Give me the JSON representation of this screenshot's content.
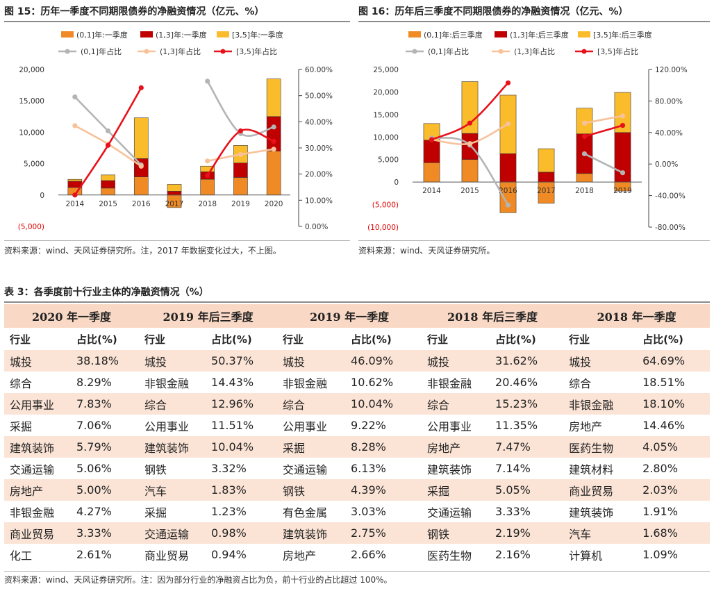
{
  "figure15": {
    "title": "图 15：历年一季度不同期限债券的净融资情况（亿元、%）",
    "source": "资料来源：wind、天风证券研究所。注，2017 年数据变化过大，不上图。"
  },
  "figure16": {
    "title": "图 16：历年后三季度不同期限债券的净融资情况（亿元、%）",
    "source": "资料来源：wind、天风证券研究所。"
  },
  "colors": {
    "bar_short": "#f08a24",
    "bar_mid": "#c00000",
    "bar_long": "#fbbc2c",
    "line_short": "#b4b4b4",
    "line_mid": "#f7c29a",
    "line_long": "#e8101a",
    "negative_tick": "#e00000"
  },
  "chart_data": [
    {
      "type": "bar",
      "stacked": true,
      "categories": [
        "2014",
        "2015",
        "2016",
        "2017",
        "2018",
        "2019",
        "2020"
      ],
      "series": [
        {
          "name": "(0,1]年:一季度",
          "values": [
            1200,
            1100,
            2900,
            -2000,
            2500,
            2800,
            7000
          ]
        },
        {
          "name": "(1,3]年:一季度",
          "values": [
            1000,
            1200,
            2900,
            600,
            1200,
            2300,
            5500
          ]
        },
        {
          "name": "[3,5]年:一季度",
          "values": [
            300,
            900,
            6500,
            1100,
            900,
            2800,
            6000
          ]
        }
      ],
      "line_series": [
        {
          "name": "(0,1]年占比",
          "values": [
            49.5,
            36.5,
            23.5,
            null,
            55.5,
            35.5,
            38.0
          ]
        },
        {
          "name": "(1,3]年占比",
          "values": [
            38.5,
            31.5,
            23.0,
            null,
            25.0,
            27.5,
            29.5
          ]
        },
        {
          "name": "[3,5]年占比",
          "values": [
            12.0,
            31.0,
            53.0,
            null,
            19.5,
            36.5,
            32.5
          ]
        }
      ],
      "ylim": [
        -5000,
        20000
      ],
      "yticks": [
        "(5,000)",
        "0",
        "5,000",
        "10,000",
        "15,000",
        "20,000"
      ],
      "y2lim": [
        0,
        60
      ],
      "y2ticks": [
        "0.00%",
        "10.00%",
        "20.00%",
        "30.00%",
        "40.00%",
        "50.00%",
        "60.00%"
      ],
      "legend": "top"
    },
    {
      "type": "bar",
      "stacked": true,
      "categories": [
        "2014",
        "2015",
        "2016",
        "2017",
        "2018",
        "2019"
      ],
      "series": [
        {
          "name": "(0,1]年:后三季度",
          "values": [
            4300,
            5000,
            -6800,
            -4700,
            1900,
            -2000
          ]
        },
        {
          "name": "(1,3]年:后三季度",
          "values": [
            5000,
            5800,
            6300,
            2200,
            8800,
            11000
          ]
        },
        {
          "name": "[3,5]年:后三季度",
          "values": [
            3700,
            11500,
            13000,
            5200,
            5700,
            8900
          ]
        }
      ],
      "line_series": [
        {
          "name": "(0,1]年占比",
          "values": [
            33.0,
            24.0,
            -52.0,
            null,
            13.0,
            -11.0
          ]
        },
        {
          "name": "(1,3]年占比",
          "values": [
            31.0,
            26.0,
            51.0,
            null,
            52.0,
            61.0
          ]
        },
        {
          "name": "[3,5]年占比",
          "values": [
            31.0,
            52.0,
            103.0,
            null,
            35.0,
            49.0
          ]
        }
      ],
      "ylim": [
        -10000,
        25000
      ],
      "yticks": [
        "(10,000)",
        "(5,000)",
        "0",
        "5,000",
        "10,000",
        "15,000",
        "20,000",
        "25,000"
      ],
      "y2lim": [
        -80,
        120
      ],
      "y2ticks": [
        "-80.00%",
        "-40.00%",
        "0.00%",
        "40.00%",
        "80.00%",
        "120.00%"
      ],
      "legend": "top"
    }
  ],
  "table3": {
    "title": "表 3：各季度前十行业主体的净融资情况（%）",
    "source": "资料来源：wind、天风证券研究所。注：因为部分行业的净融资占比为负，前十行业的占比超过 100%。",
    "col_industry": "行业",
    "col_ratio": "占比(%)",
    "groups": [
      {
        "title": "2020 年一季度",
        "rows": [
          [
            "城投",
            "38.18%"
          ],
          [
            "综合",
            "8.29%"
          ],
          [
            "公用事业",
            "7.83%"
          ],
          [
            "采掘",
            "7.06%"
          ],
          [
            "建筑装饰",
            "5.79%"
          ],
          [
            "交通运输",
            "5.06%"
          ],
          [
            "房地产",
            "5.00%"
          ],
          [
            "非银金融",
            "4.27%"
          ],
          [
            "商业贸易",
            "3.33%"
          ],
          [
            "化工",
            "2.61%"
          ]
        ]
      },
      {
        "title": "2019 年后三季度",
        "rows": [
          [
            "城投",
            "50.37%"
          ],
          [
            "非银金融",
            "14.43%"
          ],
          [
            "综合",
            "12.96%"
          ],
          [
            "公用事业",
            "11.51%"
          ],
          [
            "建筑装饰",
            "10.04%"
          ],
          [
            "钢铁",
            "3.32%"
          ],
          [
            "汽车",
            "1.83%"
          ],
          [
            "采掘",
            "1.23%"
          ],
          [
            "交通运输",
            "0.98%"
          ],
          [
            "商业贸易",
            "0.94%"
          ]
        ]
      },
      {
        "title": "2019 年一季度",
        "rows": [
          [
            "城投",
            "46.09%"
          ],
          [
            "非银金融",
            "10.62%"
          ],
          [
            "综合",
            "10.04%"
          ],
          [
            "公用事业",
            "9.22%"
          ],
          [
            "采掘",
            "8.28%"
          ],
          [
            "交通运输",
            "6.13%"
          ],
          [
            "钢铁",
            "4.39%"
          ],
          [
            "有色金属",
            "3.03%"
          ],
          [
            "建筑装饰",
            "2.75%"
          ],
          [
            "房地产",
            "2.66%"
          ]
        ]
      },
      {
        "title": "2018 年后三季度",
        "rows": [
          [
            "城投",
            "31.62%"
          ],
          [
            "非银金融",
            "20.46%"
          ],
          [
            "综合",
            "15.23%"
          ],
          [
            "公用事业",
            "11.35%"
          ],
          [
            "房地产",
            "7.47%"
          ],
          [
            "建筑装饰",
            "7.14%"
          ],
          [
            "采掘",
            "5.05%"
          ],
          [
            "交通运输",
            "3.33%"
          ],
          [
            "钢铁",
            "2.19%"
          ],
          [
            "医药生物",
            "2.16%"
          ]
        ]
      },
      {
        "title": "2018 年一季度",
        "rows": [
          [
            "城投",
            "64.69%"
          ],
          [
            "综合",
            "18.51%"
          ],
          [
            "非银金融",
            "18.10%"
          ],
          [
            "房地产",
            "14.46%"
          ],
          [
            "医药生物",
            "4.05%"
          ],
          [
            "建筑材料",
            "2.80%"
          ],
          [
            "商业贸易",
            "2.03%"
          ],
          [
            "建筑装饰",
            "1.91%"
          ],
          [
            "汽车",
            "1.68%"
          ],
          [
            "计算机",
            "1.09%"
          ]
        ]
      }
    ]
  }
}
